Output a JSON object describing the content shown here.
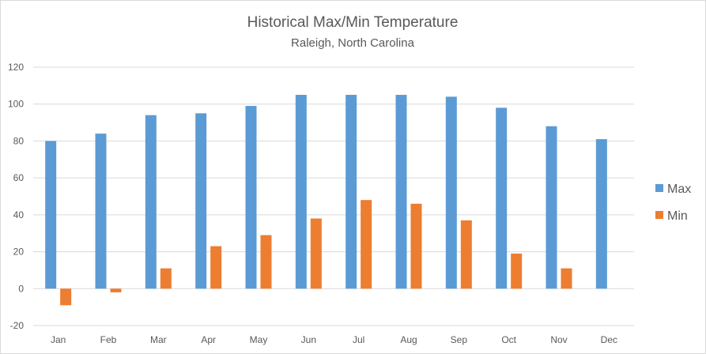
{
  "chart_data": {
    "type": "bar",
    "title": "Historical Max/Min Temperature",
    "subtitle": "Raleigh, North Carolina",
    "xlabel": "",
    "ylabel": "",
    "categories": [
      "Jan",
      "Feb",
      "Mar",
      "Apr",
      "May",
      "Jun",
      "Jul",
      "Aug",
      "Sep",
      "Oct",
      "Nov",
      "Dec"
    ],
    "series": [
      {
        "name": "Max",
        "color": "#5b9bd5",
        "values": [
          80,
          84,
          94,
          95,
          99,
          105,
          105,
          105,
          104,
          98,
          88,
          81
        ]
      },
      {
        "name": "Min",
        "color": "#ed7d31",
        "values": [
          -9,
          -2,
          11,
          23,
          29,
          38,
          48,
          46,
          37,
          19,
          11,
          null
        ]
      }
    ],
    "ylim": [
      -20,
      120
    ],
    "yticks": [
      "-20",
      "0",
      "20",
      "40",
      "60",
      "80",
      "100",
      "120"
    ],
    "grid": true,
    "legend_position": "right"
  }
}
